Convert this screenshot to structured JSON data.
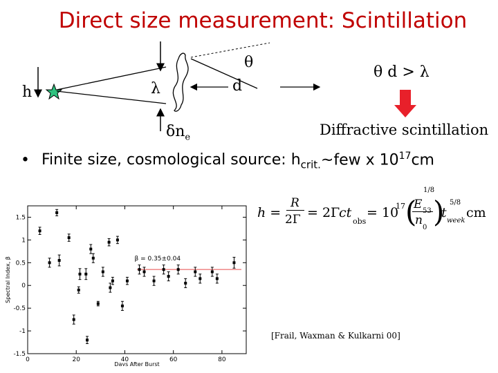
{
  "slide": {
    "title": "Direct size measurement: Scintillation",
    "labels": {
      "h": "h",
      "lambda": "λ",
      "d": "d",
      "theta": "θ",
      "delta_ne": "δn",
      "delta_ne_sub": "e",
      "condition": "θ d > λ",
      "diffractive": "Diffractive scintillation"
    },
    "bullet": {
      "text": "Finite size, cosmological source: h",
      "sub": "crit.",
      "rest": "~few x 10",
      "sup": "17",
      "unit": "cm"
    },
    "formula": {
      "lhs": "h =",
      "R": "R",
      "two_gamma": "2Γ",
      "eq1": "= 2Γ",
      "ct": "ct",
      "obs": "obs",
      "eq2": "= 10",
      "exp": "17",
      "E53": "E",
      "E53_sub": "53",
      "n0": "n",
      "n0_sub": "0",
      "pow18": "1/8",
      "t": "t",
      "week": "week",
      "pow58": "5/8",
      "unit": "cm"
    },
    "citation": "[Frail, Waxman & Kulkarni 00]",
    "colors": {
      "title": "#c00000",
      "star": "#2ec27e",
      "arrow": "#e8202a",
      "fit_line": "#e84a4a"
    }
  },
  "chart_data": {
    "type": "scatter",
    "title": "",
    "xlabel": "Days After Burst",
    "ylabel": "Spectral Index, β",
    "xlim": [
      0,
      90
    ],
    "ylim": [
      -1.5,
      1.75
    ],
    "xticks": [
      0,
      20,
      40,
      60,
      80
    ],
    "yticks": [
      -1.5,
      -1,
      -0.5,
      0,
      0.5,
      1,
      1.5
    ],
    "annotation": "β = 0.35±0.04",
    "fit": {
      "y": 0.35,
      "x_range": [
        45,
        88
      ]
    },
    "series": [
      {
        "points": [
          {
            "x": 5,
            "y": 1.2,
            "err": 0.08
          },
          {
            "x": 9,
            "y": 0.5,
            "err": 0.1
          },
          {
            "x": 12,
            "y": 1.6,
            "err": 0.07
          },
          {
            "x": 13,
            "y": 0.55,
            "err": 0.12
          },
          {
            "x": 17,
            "y": 1.05,
            "err": 0.08
          },
          {
            "x": 19,
            "y": -0.75,
            "err": 0.1
          },
          {
            "x": 21,
            "y": -0.1,
            "err": 0.07
          },
          {
            "x": 21.5,
            "y": 0.25,
            "err": 0.12
          },
          {
            "x": 24,
            "y": 0.25,
            "err": 0.12
          },
          {
            "x": 24.5,
            "y": -1.2,
            "err": 0.08
          },
          {
            "x": 26,
            "y": 0.8,
            "err": 0.1
          },
          {
            "x": 27,
            "y": 0.6,
            "err": 0.1
          },
          {
            "x": 29,
            "y": -0.4,
            "err": 0.05
          },
          {
            "x": 31,
            "y": 0.3,
            "err": 0.1
          },
          {
            "x": 33.5,
            "y": 0.95,
            "err": 0.08
          },
          {
            "x": 34,
            "y": -0.05,
            "err": 0.1
          },
          {
            "x": 35,
            "y": 0.1,
            "err": 0.08
          },
          {
            "x": 37,
            "y": 1.0,
            "err": 0.08
          },
          {
            "x": 39,
            "y": -0.45,
            "err": 0.1
          },
          {
            "x": 41,
            "y": 0.1,
            "err": 0.08
          },
          {
            "x": 46,
            "y": 0.35,
            "err": 0.1
          },
          {
            "x": 48,
            "y": 0.3,
            "err": 0.1
          },
          {
            "x": 52,
            "y": 0.1,
            "err": 0.1
          },
          {
            "x": 56,
            "y": 0.35,
            "err": 0.1
          },
          {
            "x": 58,
            "y": 0.2,
            "err": 0.1
          },
          {
            "x": 62,
            "y": 0.35,
            "err": 0.1
          },
          {
            "x": 65,
            "y": 0.05,
            "err": 0.1
          },
          {
            "x": 69,
            "y": 0.3,
            "err": 0.1
          },
          {
            "x": 71,
            "y": 0.15,
            "err": 0.1
          },
          {
            "x": 76,
            "y": 0.3,
            "err": 0.1
          },
          {
            "x": 78,
            "y": 0.15,
            "err": 0.1
          },
          {
            "x": 85,
            "y": 0.5,
            "err": 0.12
          }
        ]
      }
    ]
  }
}
